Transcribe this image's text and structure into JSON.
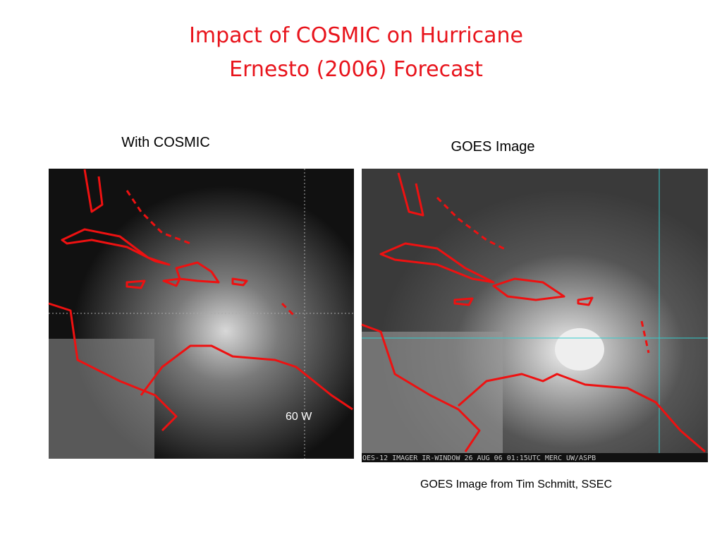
{
  "header": {
    "title_lines": [
      "Impact of COSMIC on Hurricane",
      "Ernesto (2006) Forecast"
    ]
  },
  "panels": [
    {
      "caption": "With COSMIC",
      "overlay_text": "60 W"
    },
    {
      "caption": "GOES Image",
      "overlay_text": "OES-12 IMAGER  IR-WINDOW  26 AUG 06  01:15UTC MERC  UW/ASPB"
    }
  ],
  "credit": "GOES Image from Tim Schmitt, SSEC"
}
